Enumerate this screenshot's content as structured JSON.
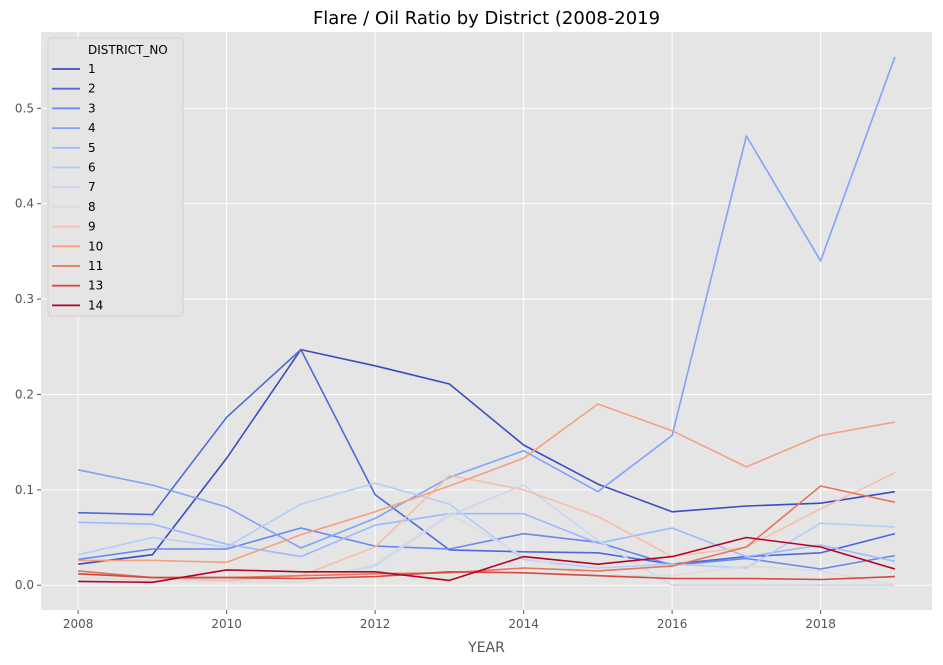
{
  "chart_data": {
    "type": "line",
    "title": "Flare / Oil Ratio by District (2008-2019",
    "xlabel": "YEAR",
    "ylabel": "",
    "x": [
      2008,
      2009,
      2010,
      2011,
      2012,
      2013,
      2014,
      2015,
      2016,
      2017,
      2018,
      2019
    ],
    "xlim": [
      2007.5,
      2019.5
    ],
    "ylim": [
      -0.026,
      0.58
    ],
    "xticks": [
      "2008",
      "2010",
      "2012",
      "2014",
      "2016",
      "2018"
    ],
    "yticks": [
      "0.0",
      "0.1",
      "0.2",
      "0.3",
      "0.4",
      "0.5"
    ],
    "grid": true,
    "legend_title": "DISTRICT_NO",
    "legend_position": "top-left",
    "series": [
      {
        "name": "1",
        "color": "#3b4cc0",
        "values": [
          0.022,
          0.032,
          0.133,
          0.247,
          0.23,
          0.211,
          0.147,
          0.106,
          0.077,
          0.083,
          0.086,
          0.098
        ]
      },
      {
        "name": "2",
        "color": "#4f69d9",
        "values": [
          0.076,
          0.074,
          0.176,
          0.247,
          0.095,
          0.037,
          0.035,
          0.034,
          0.022,
          0.03,
          0.034,
          0.054
        ]
      },
      {
        "name": "3",
        "color": "#6788ee",
        "values": [
          0.027,
          0.038,
          0.038,
          0.06,
          0.041,
          0.038,
          0.054,
          0.045,
          0.021,
          0.028,
          0.017,
          0.031
        ]
      },
      {
        "name": "4",
        "color": "#80a3fa",
        "values": [
          0.121,
          0.105,
          0.082,
          0.039,
          0.07,
          0.113,
          0.141,
          0.098,
          0.157,
          0.471,
          0.34,
          0.554
        ]
      },
      {
        "name": "5",
        "color": "#9abbff",
        "values": [
          0.066,
          0.064,
          0.043,
          0.03,
          0.063,
          0.075,
          0.075,
          0.044,
          0.06,
          0.03,
          0.042,
          0.025
        ]
      },
      {
        "name": "6",
        "color": "#b3cdfb",
        "values": [
          0.032,
          0.05,
          0.04,
          0.085,
          0.107,
          0.085,
          0.027,
          0.018,
          0.022,
          0.018,
          0.065,
          0.061
        ]
      },
      {
        "name": "7",
        "color": "#c9d7f0",
        "values": [
          0.012,
          0.008,
          0.004,
          0.003,
          0.02,
          0.073,
          0.105,
          0.047,
          0.0,
          0.0,
          0.0,
          0.0
        ]
      },
      {
        "name": "8",
        "color": "#dddcdc",
        "values": [
          0.008,
          0.005,
          0.004,
          0.003,
          0.022,
          0.075,
          0.03,
          0.01,
          0.01,
          0.02,
          0.015,
          0.0
        ]
      },
      {
        "name": "9",
        "color": "#f6bfa6",
        "values": [
          0.015,
          0.008,
          0.005,
          0.01,
          0.04,
          0.115,
          0.1,
          0.072,
          0.03,
          0.04,
          0.08,
          0.118
        ]
      },
      {
        "name": "10",
        "color": "#f5a081",
        "values": [
          0.026,
          0.026,
          0.024,
          0.053,
          0.077,
          0.104,
          0.133,
          0.19,
          0.162,
          0.124,
          0.157,
          0.171
        ]
      },
      {
        "name": "11",
        "color": "#e7745b",
        "values": [
          0.015,
          0.008,
          0.008,
          0.01,
          0.012,
          0.013,
          0.018,
          0.015,
          0.02,
          0.04,
          0.104,
          0.087
        ]
      },
      {
        "name": "13",
        "color": "#d24b40",
        "values": [
          0.012,
          0.008,
          0.008,
          0.007,
          0.009,
          0.014,
          0.013,
          0.01,
          0.007,
          0.007,
          0.006,
          0.009
        ]
      },
      {
        "name": "14",
        "color": "#b40426",
        "values": [
          0.004,
          0.003,
          0.016,
          0.014,
          0.014,
          0.005,
          0.03,
          0.022,
          0.03,
          0.05,
          0.04,
          0.017
        ]
      }
    ]
  }
}
